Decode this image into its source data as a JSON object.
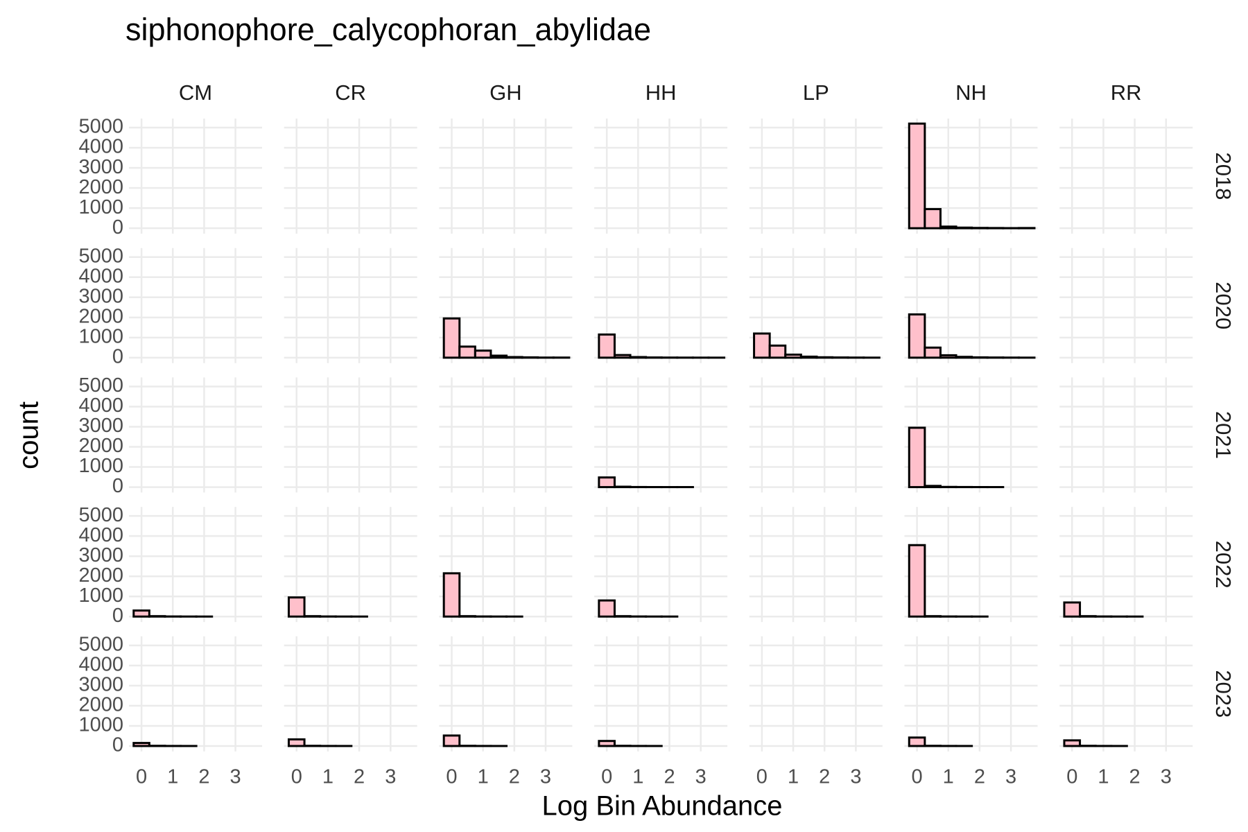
{
  "chart_data": {
    "type": "histogram",
    "title": "siphonophore_calycophoran_abylidae",
    "xlabel": "Log Bin Abundance",
    "ylabel": "count",
    "columns": [
      "CM",
      "CR",
      "GH",
      "HH",
      "LP",
      "NH",
      "RR"
    ],
    "rows": [
      "2018",
      "2020",
      "2021",
      "2022",
      "2023"
    ],
    "bins": [
      -0.25,
      0.25,
      0.75,
      1.25,
      1.75,
      2.25,
      2.75,
      3.25,
      3.75
    ],
    "panels": [
      [
        null,
        null,
        null,
        null,
        null,
        [
          5200,
          950,
          80,
          30,
          15,
          10,
          5,
          10
        ],
        null
      ],
      [
        null,
        null,
        [
          1950,
          550,
          350,
          100,
          30,
          15,
          5,
          5
        ],
        [
          1150,
          130,
          30,
          10,
          5,
          3,
          2,
          1
        ],
        [
          1200,
          600,
          150,
          50,
          20,
          10,
          5,
          2
        ],
        [
          2150,
          500,
          120,
          40,
          15,
          8,
          4,
          2
        ],
        null
      ],
      [
        null,
        null,
        null,
        [
          480,
          20,
          5,
          2,
          1,
          1,
          0,
          0
        ],
        null,
        [
          2950,
          60,
          10,
          5,
          2,
          1,
          0,
          0
        ],
        null
      ],
      [
        [
          300,
          20,
          5,
          2,
          1,
          0,
          0,
          0
        ],
        [
          950,
          20,
          5,
          2,
          1,
          0,
          0,
          0
        ],
        [
          2150,
          20,
          5,
          2,
          1,
          0,
          0,
          0
        ],
        [
          800,
          20,
          5,
          2,
          1,
          0,
          0,
          0
        ],
        null,
        [
          3550,
          20,
          5,
          2,
          1,
          0,
          0,
          0
        ],
        [
          700,
          20,
          5,
          2,
          1,
          0,
          0,
          0
        ]
      ],
      [
        [
          150,
          10,
          3,
          1,
          0,
          0,
          0,
          0
        ],
        [
          330,
          10,
          3,
          1,
          0,
          0,
          0,
          0
        ],
        [
          520,
          10,
          3,
          1,
          0,
          0,
          0,
          0
        ],
        [
          250,
          10,
          3,
          1,
          0,
          0,
          0,
          0
        ],
        null,
        [
          420,
          10,
          3,
          1,
          0,
          0,
          0,
          0
        ],
        [
          280,
          10,
          3,
          1,
          0,
          0,
          0,
          0
        ]
      ]
    ],
    "color": "#ffc0cb",
    "edgecolor": "#000000",
    "xlim": [
      -0.4,
      3.85
    ],
    "xticks": [
      0,
      1,
      2,
      3
    ],
    "ylim": [
      -270,
      5450
    ],
    "yticks": [
      0,
      1000,
      2000,
      3000,
      4000,
      5000
    ],
    "grid": true
  }
}
